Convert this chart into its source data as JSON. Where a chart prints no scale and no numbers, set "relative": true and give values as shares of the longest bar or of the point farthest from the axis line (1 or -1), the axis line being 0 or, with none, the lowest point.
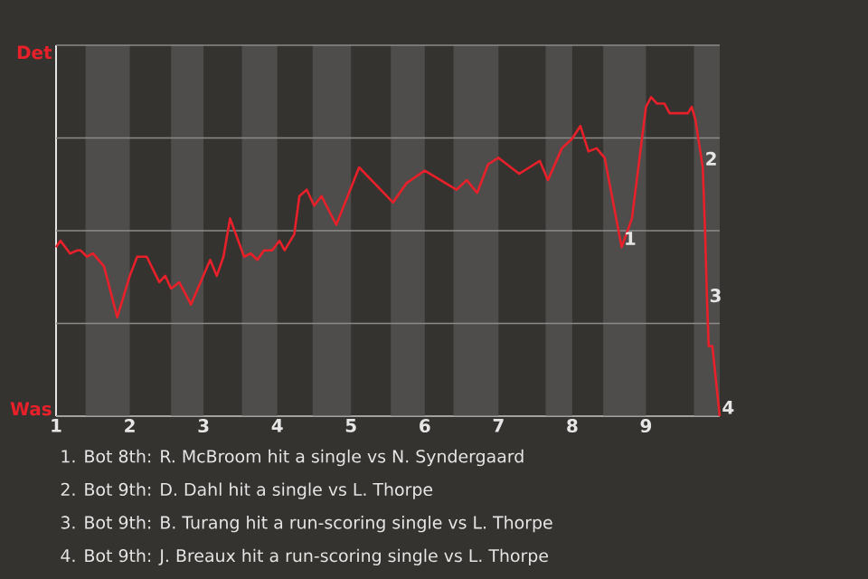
{
  "chart_data": {
    "type": "line",
    "relative": true,
    "color": "#e8202a",
    "grid": "y",
    "marker": "none",
    "line_style": "solid",
    "x": [
      1.0,
      1.06,
      1.19,
      1.29,
      1.33,
      1.42,
      1.5,
      1.65,
      1.83,
      2.0,
      2.1,
      2.23,
      2.4,
      2.48,
      2.56,
      2.67,
      2.83,
      3.09,
      3.18,
      3.27,
      3.36,
      3.55,
      3.64,
      3.73,
      3.82,
      3.93,
      4.03,
      4.1,
      4.23,
      4.3,
      4.4,
      4.5,
      4.6,
      4.8,
      5.11,
      5.57,
      5.75,
      6.0,
      6.43,
      6.57,
      6.71,
      6.86,
      7.0,
      7.28,
      7.42,
      7.56,
      7.67,
      7.86,
      8.0,
      8.11,
      8.22,
      8.33,
      8.44,
      8.67,
      8.81,
      9.0,
      9.07,
      9.15,
      9.25,
      9.32,
      9.57,
      9.62,
      9.67,
      9.77,
      9.8,
      9.83,
      9.85,
      9.9,
      10.0
    ],
    "values": [
      0.53,
      0.55,
      0.51,
      0.52,
      0.52,
      0.5,
      0.51,
      0.47,
      0.31,
      0.44,
      0.5,
      0.5,
      0.42,
      0.44,
      0.4,
      0.42,
      0.35,
      0.49,
      0.44,
      0.5,
      0.62,
      0.5,
      0.51,
      0.49,
      0.52,
      0.52,
      0.55,
      0.52,
      0.57,
      0.69,
      0.71,
      0.66,
      0.69,
      0.6,
      0.78,
      0.67,
      0.73,
      0.77,
      0.71,
      0.74,
      0.7,
      0.79,
      0.81,
      0.76,
      0.78,
      0.8,
      0.74,
      0.84,
      0.87,
      0.91,
      0.83,
      0.84,
      0.81,
      0.53,
      0.62,
      0.97,
      1.0,
      0.98,
      0.98,
      0.95,
      0.95,
      0.97,
      0.93,
      0.78,
      0.59,
      0.35,
      0.22,
      0.22,
      0.0
    ],
    "xlim": [
      1,
      10
    ],
    "xticks": [
      1,
      2,
      3,
      4,
      5,
      6,
      7,
      8,
      9
    ],
    "bands": [
      {
        "axis": "x",
        "from": 1.4,
        "to": 2,
        "color": "#4f4d4b"
      },
      {
        "axis": "x",
        "from": 2.56,
        "to": 3,
        "color": "#4f4d4b"
      },
      {
        "axis": "x",
        "from": 3.52,
        "to": 4,
        "color": "#4f4d4b"
      },
      {
        "axis": "x",
        "from": 4.48,
        "to": 5,
        "color": "#4f4d4b"
      },
      {
        "axis": "x",
        "from": 5.54,
        "to": 6,
        "color": "#4f4d4b"
      },
      {
        "axis": "x",
        "from": 6.39,
        "to": 7,
        "color": "#4f4d4b"
      },
      {
        "axis": "x",
        "from": 7.64,
        "to": 8,
        "color": "#4f4d4b"
      },
      {
        "axis": "x",
        "from": 8.42,
        "to": 9,
        "color": "#4f4d4b"
      },
      {
        "axis": "x",
        "from": 9.65,
        "to": 10,
        "color": "#4f4d4b"
      }
    ],
    "annotations": [
      "Det",
      "Was",
      {
        "text": "1",
        "x": 8.67,
        "y": 0.53
      },
      {
        "text": "2",
        "x": 9.77,
        "y": 0.78
      },
      {
        "text": "3",
        "x": 9.83,
        "y": 0.35
      },
      {
        "text": "4",
        "x": 10,
        "y": 0.0
      },
      "1. Bot 8th: R. McBroom hit a single vs N. Syndergaard",
      "2. Bot 9th: D. Dahl hit a single vs L. Thorpe",
      "3. Bot 9th: B. Turang hit a run-scoring single vs L. Thorpe",
      "4. Bot 9th: J. Breaux hit a run-scoring single vs L. Thorpe"
    ]
  }
}
